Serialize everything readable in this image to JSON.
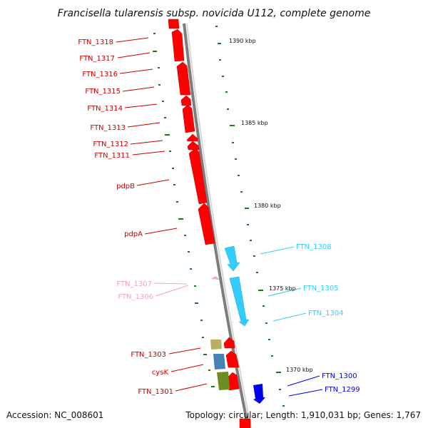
{
  "title": "Francisella tularensis subsp. novicida U112, complete genome",
  "footer": {
    "accession": "Accession: NC_008601",
    "summary": "Topology: circular; Length: 1,910,031 bp; Genes: 1,767"
  },
  "scale_labels": [
    "1390 kbp",
    "1385 kbp",
    "1380 kbp",
    "1375 kbp",
    "1370 kbp"
  ],
  "left_labels": [
    "FTN_1318",
    "FTN_1317",
    "FTN_1316",
    "FTN_1315",
    "FTN_1314",
    "FTN_1313",
    "FTN_1312",
    "FTN_1311",
    "pdpB",
    "pdpA",
    "FTN_1307",
    "FTN_1306",
    "FTN_1303",
    "cysK",
    "FTN_1301"
  ],
  "right_labels": [
    "FTN_1308",
    "FTN_1305",
    "FTN_1304",
    "FTN_1300",
    "FTN_1299"
  ],
  "colors": {
    "red_genes": "#ff0000",
    "cyan_genes": "#33ccff",
    "pink_genes": "#f4a0c8",
    "blue_genes": "#0000ee",
    "olive_gene": "#6b8e23",
    "khaki_gene": "#b8b060",
    "steel_gene": "#4682b4",
    "backbone": "#888888",
    "ticks": "#1a7a1a"
  }
}
